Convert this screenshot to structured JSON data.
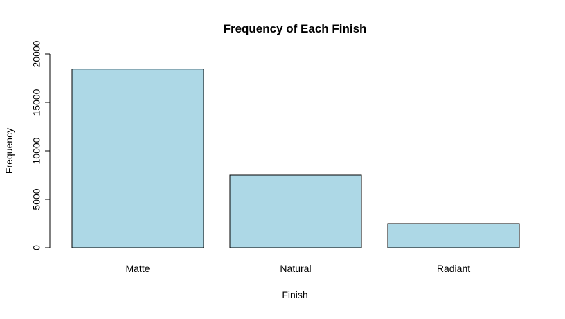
{
  "chart_data": {
    "type": "bar",
    "title": "Frequency of Each Finish",
    "xlabel": "Finish",
    "ylabel": "Frequency",
    "categories": [
      "Matte",
      "Natural",
      "Radiant"
    ],
    "values": [
      18450,
      7500,
      2500
    ],
    "ylim": [
      0,
      20000
    ],
    "yticks": [
      0,
      5000,
      10000,
      15000,
      20000
    ],
    "ytick_labels": [
      "0",
      "5000",
      "10000",
      "15000",
      "20000"
    ],
    "grid": false,
    "legend": "none",
    "bar_color": "#add8e6",
    "bar_edge_color": "#000000"
  }
}
